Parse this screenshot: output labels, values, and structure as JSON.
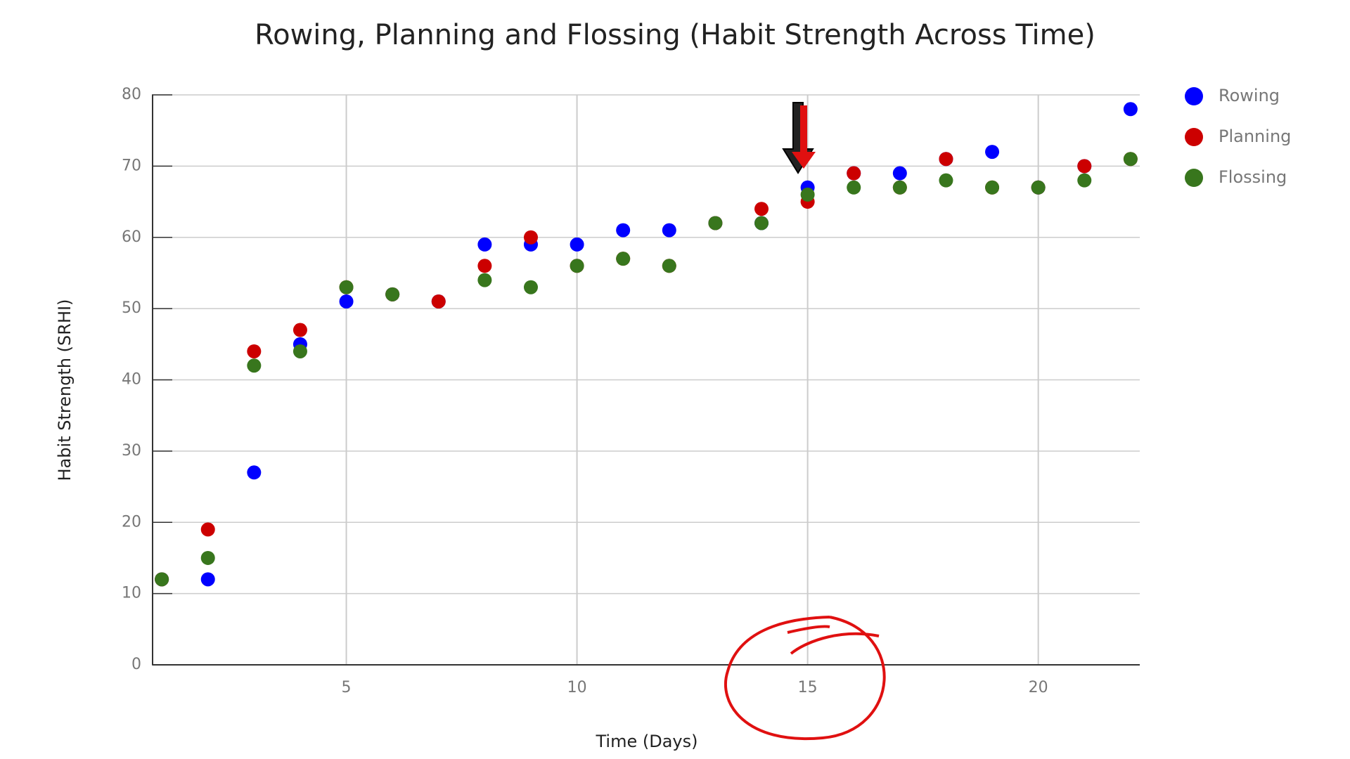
{
  "chart_data": {
    "type": "scatter",
    "title": "Rowing, Planning and Flossing (Habit Strength Across Time)",
    "x_label": "Time (Days)",
    "y_label": "Habit Strength (SRHI)",
    "x": [
      1,
      2,
      3,
      4,
      5,
      6,
      7,
      8,
      9,
      10,
      11,
      12,
      13,
      14,
      15,
      16,
      17,
      18,
      19,
      20,
      21,
      22
    ],
    "series": [
      {
        "name": "Rowing",
        "color": "#0000ff",
        "values": [
          12,
          12,
          27,
          45,
          51,
          52,
          51,
          59,
          59,
          59,
          61,
          61,
          62,
          62,
          67,
          69,
          69,
          71,
          72,
          67,
          70,
          78
        ]
      },
      {
        "name": "Planning",
        "color": "#cc0000",
        "values": [
          12,
          19,
          44,
          47,
          53,
          52,
          51,
          56,
          60,
          56,
          57,
          56,
          62,
          64,
          65,
          69,
          67,
          71,
          67,
          67,
          70,
          71
        ]
      },
      {
        "name": "Flossing",
        "color": "#38761d",
        "values": [
          12,
          15,
          42,
          44,
          53,
          52,
          null,
          54,
          53,
          56,
          57,
          56,
          62,
          62,
          66,
          67,
          67,
          68,
          67,
          67,
          68,
          71
        ]
      }
    ],
    "xlim": [
      0.8,
      22.2
    ],
    "xticks": [
      5,
      10,
      15,
      20
    ],
    "ylim": [
      0,
      80
    ],
    "yticks": [
      0,
      10,
      20,
      30,
      40,
      50,
      60,
      70,
      80
    ],
    "grid": true,
    "legend": "right"
  }
}
